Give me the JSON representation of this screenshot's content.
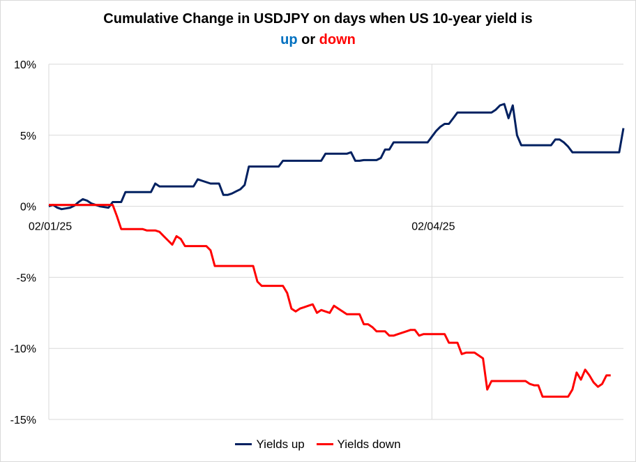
{
  "title": {
    "line1": "Cumulative Change in USDJPY on days when US 10-year yield is",
    "up": "up",
    "or": "or",
    "down": "down"
  },
  "chart_data": {
    "type": "line",
    "y_ticks": [
      "10%",
      "5%",
      "0%",
      "-5%",
      "-10%",
      "-15%"
    ],
    "ylim": [
      -15,
      10
    ],
    "x_tick_labels": [
      "02/01/25",
      "02/04/25"
    ],
    "x_tick_index": [
      0,
      90
    ],
    "grid": true,
    "legend_position": "bottom",
    "series": [
      {
        "name": "Yields up",
        "color": "#002060",
        "values": [
          0,
          0.1,
          -0.1,
          -0.2,
          -0.15,
          -0.1,
          0.05,
          0.3,
          0.5,
          0.4,
          0.2,
          0.1,
          0,
          -0.05,
          -0.1,
          0.3,
          0.3,
          0.3,
          1.0,
          1.0,
          1.0,
          1.0,
          1.0,
          1.0,
          1.0,
          1.6,
          1.4,
          1.4,
          1.4,
          1.4,
          1.4,
          1.4,
          1.4,
          1.4,
          1.4,
          1.9,
          1.8,
          1.7,
          1.6,
          1.6,
          1.6,
          0.8,
          0.8,
          0.9,
          1.05,
          1.2,
          1.5,
          2.8,
          2.8,
          2.8,
          2.8,
          2.8,
          2.8,
          2.8,
          2.8,
          3.2,
          3.2,
          3.2,
          3.2,
          3.2,
          3.2,
          3.2,
          3.2,
          3.2,
          3.2,
          3.7,
          3.7,
          3.7,
          3.7,
          3.7,
          3.7,
          3.8,
          3.2,
          3.2,
          3.25,
          3.25,
          3.25,
          3.25,
          3.4,
          4.0,
          4.0,
          4.5,
          4.5,
          4.5,
          4.5,
          4.5,
          4.5,
          4.5,
          4.5,
          4.5,
          4.9,
          5.3,
          5.6,
          5.8,
          5.8,
          6.2,
          6.6,
          6.6,
          6.6,
          6.6,
          6.6,
          6.6,
          6.6,
          6.6,
          6.6,
          6.8,
          7.1,
          7.2,
          6.2,
          7.1,
          5.0,
          4.3,
          4.3,
          4.3,
          4.3,
          4.3,
          4.3,
          4.3,
          4.3,
          4.7,
          4.7,
          4.5,
          4.2,
          3.8,
          3.8,
          3.8,
          3.8,
          3.8,
          3.8,
          3.8,
          3.8,
          3.8,
          3.8,
          3.8,
          3.8,
          5.5
        ]
      },
      {
        "name": "Yields down",
        "color": "#ff0000",
        "values": [
          0.1,
          0.1,
          0.1,
          0.1,
          0.1,
          0.1,
          0.1,
          0.1,
          0.1,
          0.1,
          0.1,
          0.1,
          0.1,
          0.1,
          0.1,
          0.1,
          -0.7,
          -1.6,
          -1.6,
          -1.6,
          -1.6,
          -1.6,
          -1.6,
          -1.7,
          -1.7,
          -1.7,
          -1.8,
          -2.1,
          -2.4,
          -2.7,
          -2.1,
          -2.3,
          -2.8,
          -2.8,
          -2.8,
          -2.8,
          -2.8,
          -2.8,
          -3.1,
          -4.2,
          -4.2,
          -4.2,
          -4.2,
          -4.2,
          -4.2,
          -4.2,
          -4.2,
          -4.2,
          -4.2,
          -5.3,
          -5.6,
          -5.6,
          -5.6,
          -5.6,
          -5.6,
          -5.6,
          -6.1,
          -7.2,
          -7.4,
          -7.2,
          -7.1,
          -7.0,
          -6.9,
          -7.5,
          -7.3,
          -7.4,
          -7.5,
          -7.0,
          -7.2,
          -7.4,
          -7.6,
          -7.6,
          -7.6,
          -7.6,
          -8.3,
          -8.3,
          -8.5,
          -8.8,
          -8.8,
          -8.8,
          -9.1,
          -9.1,
          -9.0,
          -8.9,
          -8.8,
          -8.7,
          -8.7,
          -9.1,
          -9.0,
          -9.0,
          -9.0,
          -9.0,
          -9.0,
          -9.0,
          -9.6,
          -9.6,
          -9.6,
          -10.4,
          -10.3,
          -10.3,
          -10.3,
          -10.5,
          -10.7,
          -12.9,
          -12.3,
          -12.3,
          -12.3,
          -12.3,
          -12.3,
          -12.3,
          -12.3,
          -12.3,
          -12.3,
          -12.5,
          -12.6,
          -12.6,
          -13.4,
          -13.4,
          -13.4,
          -13.4,
          -13.4,
          -13.4,
          -13.4,
          -12.9,
          -11.7,
          -12.2,
          -11.5,
          -11.9,
          -12.4,
          -12.7,
          -12.5,
          -11.9,
          -11.9
        ]
      }
    ]
  }
}
